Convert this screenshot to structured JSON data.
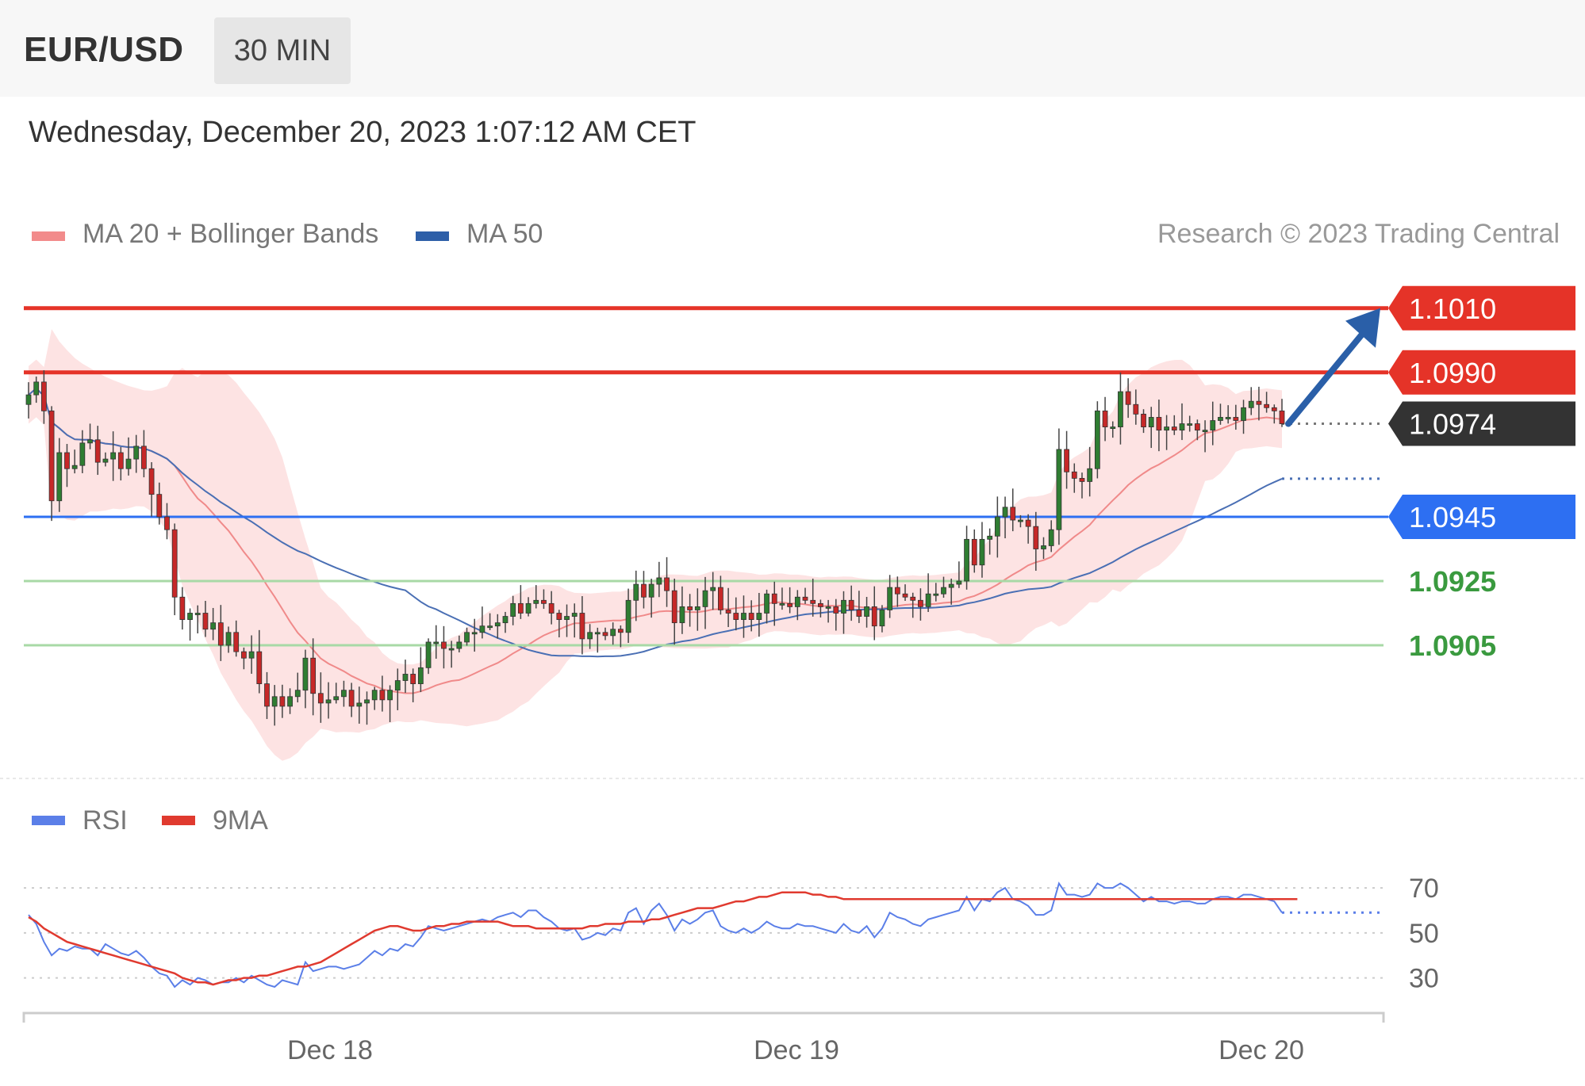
{
  "header": {
    "pair": "EUR/USD",
    "timeframe": "30 MIN",
    "datetime": "Wednesday, December 20, 2023 1:07:12 AM CET"
  },
  "legend": {
    "main": [
      {
        "label": "MA 20 + Bollinger Bands",
        "color": "#f28b8b"
      },
      {
        "label": "MA 50",
        "color": "#2e5fa8"
      }
    ],
    "rsi": [
      {
        "label": "RSI",
        "color": "#5b7fe8"
      },
      {
        "label": "9MA",
        "color": "#e03a2f"
      }
    ]
  },
  "copyright": "Research © 2023 Trading Central",
  "colors": {
    "bull": "#2f7d32",
    "bear": "#c62828",
    "resistance": "#e53328",
    "pivot": "#2d6ff2",
    "support": "#3a9a3f",
    "current": "#333333",
    "bollinger": "#fde3e3",
    "ma20": "#f08a8a",
    "ma50": "#4a6fb4",
    "arrow": "#2a5fa8"
  },
  "chart_data": [
    {
      "type": "candlestick",
      "name": "price",
      "x_labels": [
        "Dec 18",
        "Dec 19",
        "Dec 20"
      ],
      "ylim": [
        1.0865,
        1.1025
      ],
      "levels": [
        {
          "label": "1.1010",
          "value": 1.101,
          "kind": "resistance"
        },
        {
          "label": "1.0990",
          "value": 1.099,
          "kind": "resistance"
        },
        {
          "label": "1.0974",
          "value": 1.0974,
          "kind": "current"
        },
        {
          "label": "1.0945",
          "value": 1.0945,
          "kind": "pivot"
        },
        {
          "label": "1.0925",
          "value": 1.0925,
          "kind": "support"
        },
        {
          "label": "1.0905",
          "value": 1.0905,
          "kind": "support"
        }
      ],
      "forecast_target": 1.101,
      "close": [
        1.0983,
        1.0987,
        1.0978,
        1.095,
        1.0965,
        1.096,
        1.0961,
        1.0968,
        1.0969,
        1.0962,
        1.0963,
        1.0965,
        1.096,
        1.0963,
        1.0967,
        1.096,
        1.0952,
        1.0945,
        1.0941,
        1.092,
        1.0913,
        1.0915,
        1.0915,
        1.091,
        1.0912,
        1.0905,
        1.0909,
        1.0903,
        1.0901,
        1.0903,
        1.0893,
        1.0886,
        1.0889,
        1.0886,
        1.0889,
        1.0891,
        1.0901,
        1.089,
        1.0887,
        1.0888,
        1.0889,
        1.0891,
        1.0886,
        1.0887,
        1.0888,
        1.0891,
        1.0888,
        1.0891,
        1.0894,
        1.0896,
        1.0893,
        1.0898,
        1.0906,
        1.0906,
        1.0904,
        1.0904,
        1.0906,
        1.0909,
        1.0909,
        1.0911,
        1.0911,
        1.0912,
        1.0914,
        1.0918,
        1.0915,
        1.0918,
        1.0919,
        1.0918,
        1.0915,
        1.0913,
        1.0914,
        1.0915,
        1.0907,
        1.0909,
        1.0909,
        1.0908,
        1.091,
        1.0909,
        1.0919,
        1.0924,
        1.092,
        1.0924,
        1.0926,
        1.0922,
        1.0912,
        1.0917,
        1.0916,
        1.0917,
        1.0922,
        1.0923,
        1.0916,
        1.0915,
        1.0913,
        1.0915,
        1.0913,
        1.0915,
        1.0921,
        1.0918,
        1.0918,
        1.0917,
        1.092,
        1.0919,
        1.0918,
        1.0917,
        1.0917,
        1.0915,
        1.0919,
        1.0916,
        1.0914,
        1.0917,
        1.0911,
        1.0916,
        1.0923,
        1.0921,
        1.092,
        1.0919,
        1.0917,
        1.0921,
        1.0921,
        1.0923,
        1.0924,
        1.0925,
        1.0938,
        1.093,
        1.0938,
        1.0939,
        1.0945,
        1.0948,
        1.0944,
        1.0944,
        1.0942,
        1.0935,
        1.0936,
        1.0941,
        1.0966,
        1.0959,
        1.0957,
        1.0956,
        1.096,
        1.0978,
        1.0973,
        1.0973,
        1.0984,
        1.098,
        1.0977,
        1.0973,
        1.0976,
        1.0972,
        1.0973,
        1.0972,
        1.0974,
        1.0974,
        1.0972,
        1.0972,
        1.0975,
        1.0976,
        1.0976,
        1.0975,
        1.0979,
        1.0981,
        1.098,
        1.0979,
        1.0978,
        1.0974
      ]
    },
    {
      "type": "line",
      "name": "rsi",
      "yticks": [
        70,
        50,
        30
      ],
      "ylim": [
        20,
        82
      ],
      "rsi": [
        58,
        54,
        46,
        40,
        43,
        42,
        44,
        43,
        43,
        40,
        45,
        43,
        41,
        40,
        42,
        39,
        35,
        32,
        31,
        26,
        29,
        27,
        30,
        29,
        27,
        28,
        28,
        30,
        28,
        31,
        29,
        27,
        26,
        29,
        28,
        27,
        37,
        33,
        34,
        35,
        35,
        34,
        35,
        36,
        39,
        42,
        40,
        43,
        42,
        45,
        44,
        48,
        53,
        52,
        51,
        52,
        53,
        54,
        55,
        56,
        55,
        57,
        58,
        59,
        57,
        60,
        60,
        57,
        55,
        52,
        51,
        52,
        47,
        48,
        50,
        49,
        52,
        51,
        59,
        61,
        54,
        60,
        63,
        58,
        51,
        56,
        54,
        56,
        59,
        60,
        53,
        51,
        50,
        52,
        50,
        52,
        55,
        53,
        52,
        52,
        54,
        53,
        53,
        52,
        51,
        50,
        54,
        51,
        50,
        53,
        48,
        52,
        59,
        57,
        56,
        54,
        53,
        56,
        57,
        58,
        59,
        60,
        66,
        60,
        65,
        64,
        68,
        70,
        65,
        64,
        62,
        58,
        58,
        60,
        72,
        67,
        67,
        66,
        67,
        72,
        70,
        70,
        72,
        70,
        67,
        64,
        66,
        64,
        64,
        63,
        64,
        64,
        63,
        63,
        65,
        66,
        66,
        65,
        67,
        67,
        66,
        65,
        64,
        59
      ],
      "ma9": [
        57,
        55,
        52,
        50,
        48,
        46,
        45,
        44,
        43,
        42,
        41,
        40,
        39,
        38,
        37,
        36,
        35,
        34,
        33,
        32,
        30,
        29,
        28,
        28,
        27,
        28,
        29,
        29,
        30,
        30,
        31,
        31,
        32,
        33,
        34,
        35,
        35,
        36,
        37,
        39,
        41,
        43,
        45,
        47,
        49,
        51,
        52,
        53,
        53,
        52,
        51,
        51,
        52,
        53,
        53,
        54,
        54,
        55,
        55,
        55,
        55,
        55,
        54,
        53,
        53,
        53,
        52,
        52,
        52,
        52,
        52,
        52,
        52,
        53,
        53,
        54,
        54,
        54,
        55,
        55,
        55,
        56,
        56,
        57,
        58,
        59,
        60,
        61,
        61,
        61,
        62,
        63,
        64,
        64,
        65,
        66,
        66,
        67,
        68,
        68,
        68,
        68,
        67,
        67,
        66,
        66,
        65,
        65,
        65,
        65,
        65,
        65,
        65,
        65,
        65,
        65,
        65,
        65,
        65,
        65,
        65,
        65,
        65,
        65,
        65,
        65,
        65,
        65,
        65,
        65,
        65,
        65,
        65,
        65,
        65,
        65,
        65,
        65,
        65,
        65,
        65,
        65,
        65,
        65,
        65,
        65,
        65,
        65,
        65,
        65,
        65,
        65,
        65,
        65,
        65,
        65,
        65,
        65,
        65,
        65,
        65,
        65,
        65,
        65,
        65,
        65
      ]
    }
  ]
}
